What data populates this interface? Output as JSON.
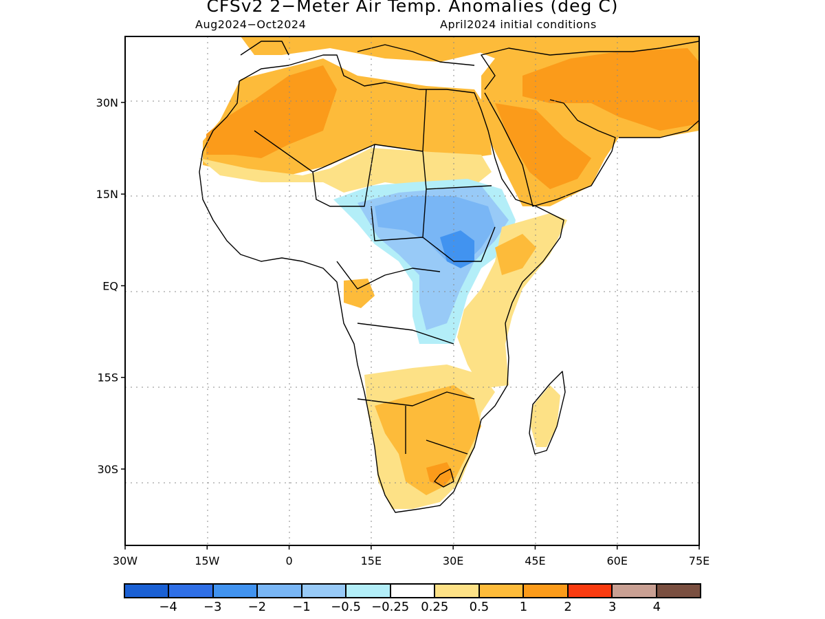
{
  "title": "CFSv2 2−Meter Air Temp. Anomalies (deg C)",
  "period": "Aug2024−Oct2024",
  "initial": "April2024 initial conditions",
  "lat_ticks": [
    {
      "value": 30,
      "label": "30N"
    },
    {
      "value": 15,
      "label": "15N"
    },
    {
      "value": 0,
      "label": "EQ"
    },
    {
      "value": -15,
      "label": "15S"
    },
    {
      "value": -30,
      "label": "30S"
    }
  ],
  "lon_ticks": [
    {
      "value": -30,
      "label": "30W"
    },
    {
      "value": -15,
      "label": "15W"
    },
    {
      "value": 0,
      "label": "0"
    },
    {
      "value": 15,
      "label": "15E"
    },
    {
      "value": 30,
      "label": "30E"
    },
    {
      "value": 45,
      "label": "45E"
    },
    {
      "value": 60,
      "label": "60E"
    },
    {
      "value": 75,
      "label": "75E"
    }
  ],
  "legend": {
    "colors": [
      "#1a60d4",
      "#2f6fe6",
      "#4193f0",
      "#79b6f5",
      "#98caf7",
      "#b3eef8",
      "#ffffff",
      "#fde186",
      "#fdbb3a",
      "#fb9b1a",
      "#fa3b10",
      "#c9a093",
      "#7a4f40"
    ],
    "labels": [
      "−4",
      "−3",
      "−2",
      "−1",
      "−0.5",
      "−0.25",
      "0.25",
      "0.5",
      "1",
      "2",
      "3",
      "4"
    ]
  }
}
